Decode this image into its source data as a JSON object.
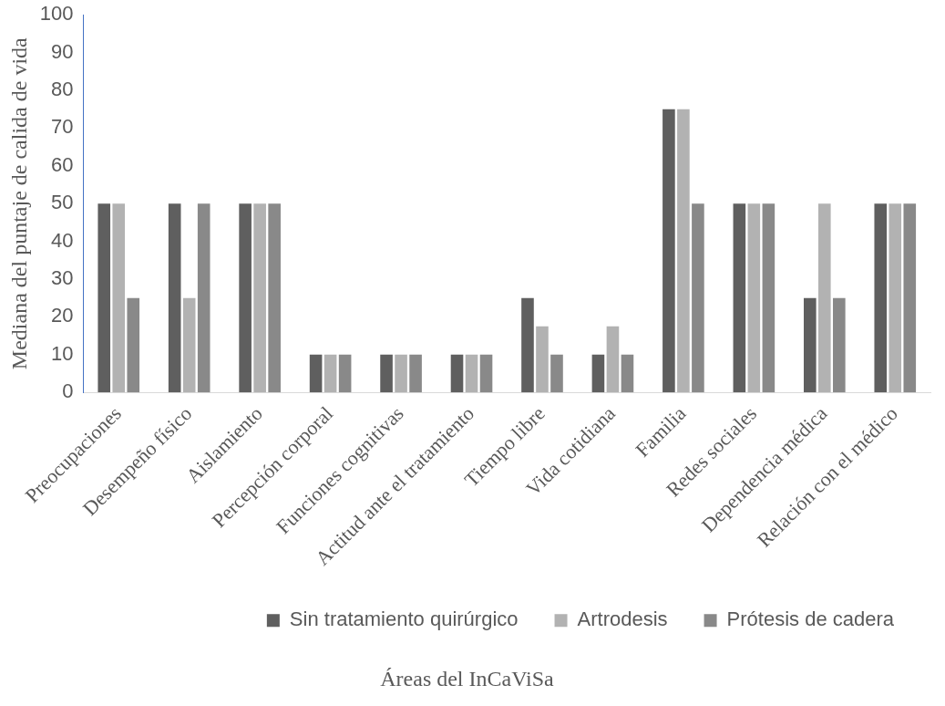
{
  "chart_data": {
    "type": "bar",
    "xlabel": "Áreas del InCaViSa",
    "ylabel": "Mediana del puntaje de calida de vida",
    "categories": [
      "Preocupaciones",
      "Desempeño físico",
      "Aislamiento",
      "Percepción corporal",
      "Funciones cognitivas",
      "Actitud ante el tratamiento",
      "Tiempo libre",
      "Vida cotidiana",
      "Familia",
      "Redes sociales",
      "Dependencia médica",
      "Relación con el médico"
    ],
    "series": [
      {
        "name": "Sin tratamiento quirúrgico",
        "color": "#5f5f5f",
        "values": [
          50,
          50,
          50,
          10,
          10,
          10,
          25,
          10,
          75,
          50,
          25,
          50
        ]
      },
      {
        "name": "Artrodesis",
        "color": "#b2b2b2",
        "values": [
          50,
          25,
          50,
          10,
          10,
          10,
          17.5,
          17.5,
          75,
          50,
          50,
          50
        ]
      },
      {
        "name": "Prótesis de cadera",
        "color": "#898989",
        "values": [
          25,
          50,
          50,
          10,
          10,
          10,
          10,
          10,
          50,
          50,
          25,
          50
        ]
      }
    ],
    "ylim": [
      0,
      100
    ],
    "yticks": [
      0,
      10,
      20,
      30,
      40,
      50,
      60,
      70,
      80,
      90,
      100
    ],
    "grid": false,
    "legend": "bottom"
  }
}
